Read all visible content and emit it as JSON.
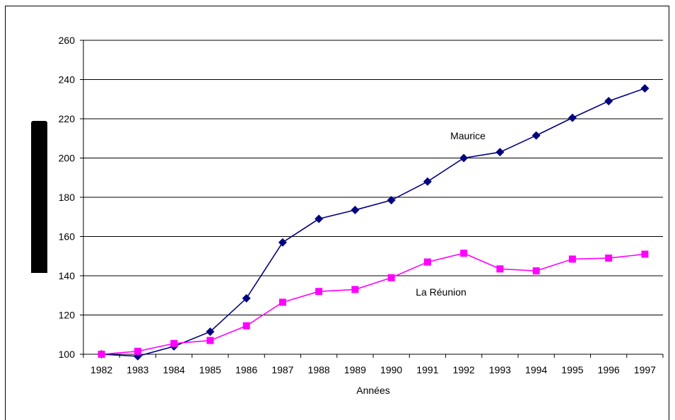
{
  "chart_data": {
    "type": "line",
    "xlabel": "Années",
    "ylabel": "",
    "ylim": [
      100,
      260
    ],
    "yticks": [
      100,
      120,
      140,
      160,
      180,
      200,
      220,
      240,
      260
    ],
    "grid": true,
    "categories": [
      "1982",
      "1983",
      "1984",
      "1985",
      "1986",
      "1987",
      "1988",
      "1989",
      "1990",
      "1991",
      "1992",
      "1993",
      "1994",
      "1995",
      "1996",
      "1997"
    ],
    "series": [
      {
        "name": "Maurice",
        "color": "#000080",
        "marker": "diamond",
        "values": [
          100,
          99,
          104,
          111.5,
          128.5,
          157,
          169,
          173.5,
          178.5,
          188,
          200,
          203,
          211.5,
          220.5,
          229,
          235.5
        ]
      },
      {
        "name": "La Réunion",
        "color": "#ff00ff",
        "marker": "square",
        "values": [
          100,
          101.5,
          105.5,
          107,
          114.5,
          126.5,
          132,
          133,
          139,
          147,
          151.5,
          143.5,
          142.5,
          148.5,
          149,
          151
        ]
      }
    ]
  }
}
